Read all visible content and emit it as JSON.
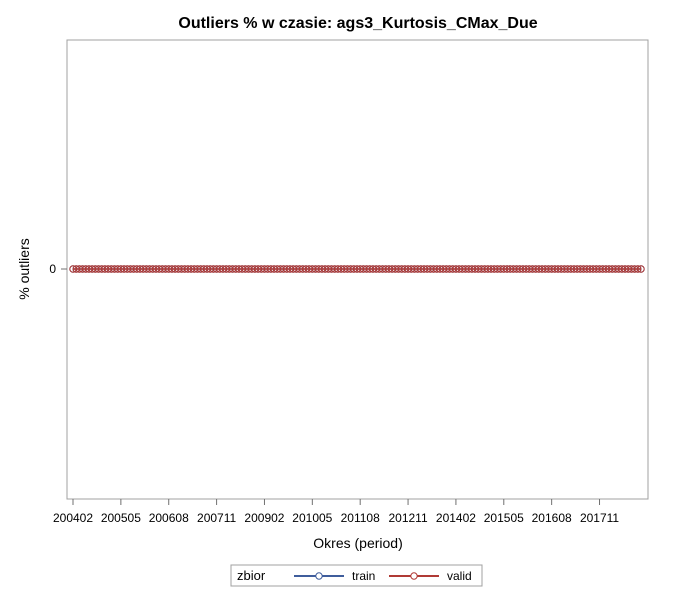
{
  "chart_data": {
    "type": "line",
    "title": "Outliers % w czasie: ags3_Kurtosis_CMax_Due",
    "xlabel": "Okres (period)",
    "ylabel": "% outliers",
    "x_tick_labels": [
      "200402",
      "200505",
      "200608",
      "200711",
      "200902",
      "201005",
      "201108",
      "201211",
      "201402",
      "201505",
      "201608",
      "201711"
    ],
    "y_tick_labels": [
      "0"
    ],
    "x_start": "200402",
    "x_end": "201812",
    "y_value": 0,
    "grid": false,
    "legend": {
      "title": "zbior",
      "position": "bottom",
      "entries": [
        {
          "name": "train",
          "color": "#3f5d9c"
        },
        {
          "name": "valid",
          "color": "#b03a35"
        }
      ]
    },
    "series": [
      {
        "name": "train",
        "color": "#3f5d9c",
        "marker": "circle",
        "values_constant": 0
      },
      {
        "name": "valid",
        "color": "#b03a35",
        "marker": "circle",
        "values_constant": 0
      }
    ]
  }
}
